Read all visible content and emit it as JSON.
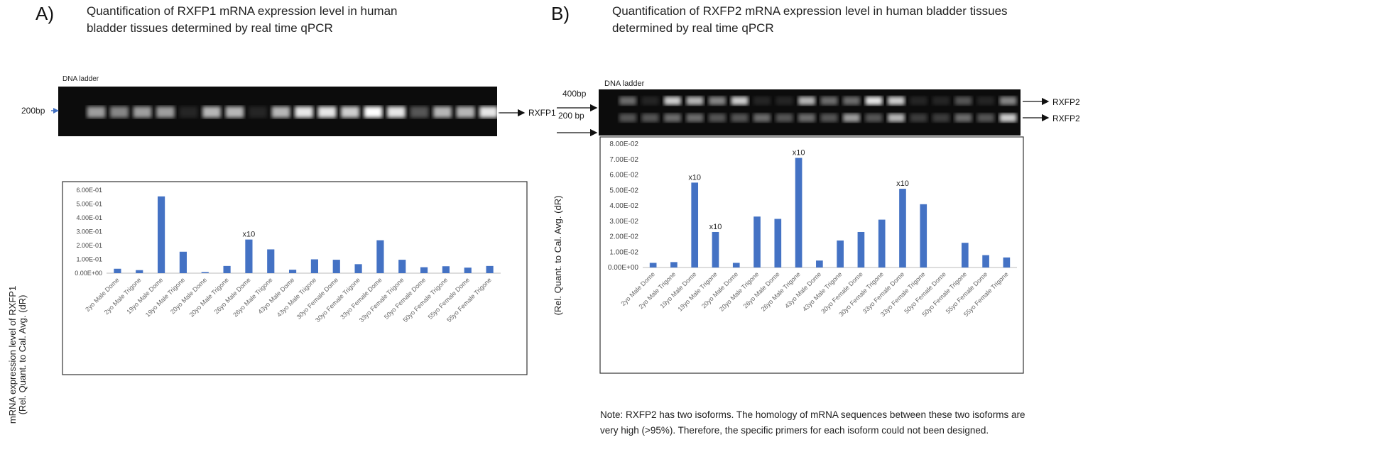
{
  "panels": [
    "A)",
    "B)"
  ],
  "gels": [
    {
      "ladder": "DNA ladder",
      "markers": [
        "200bp"
      ],
      "bands": [
        "RXFP1"
      ]
    },
    {
      "ladder": "DNA ladder",
      "markers": [
        "400bp",
        "200 bp"
      ],
      "bands": [
        "RXFP2",
        "RXFP2"
      ]
    }
  ],
  "note": "Note: RXFP2 has two isoforms. The homology of mRNA sequences between these two isoforms are very high (>95%). Therefore, the specific primers for each isoform could not been designed.",
  "chart_data": [
    {
      "type": "bar",
      "title": "Quantification of RXFP1 mRNA expression level  in human bladder tissues determined by real time qPCR",
      "ylabel": [
        "mRNA expression level of RXFP1",
        "(Rel. Quant. to Cal. Avg. (dR)"
      ],
      "categories": [
        "2yo Male Dome",
        "2yo Male Trigone",
        "19yo Male Dome",
        "19yo Male Trigone",
        "20yo Male Dome",
        "20yo Male Trigone",
        "26yo Male Dome",
        "26yo Male Trigone",
        "43yo Male Dome",
        "43yo Male Trigone",
        "30yo Female Dome",
        "30yo Female Trigone",
        "33yo Female Dome",
        "33yo Female Trigone",
        "50yo Female Dome",
        "50yo Female Trigone",
        "55yo Female Dome",
        "55yo Female Trigone"
      ],
      "values": [
        0.032,
        0.022,
        0.555,
        0.155,
        0.008,
        0.052,
        0.243,
        0.172,
        0.025,
        0.1,
        0.097,
        0.065,
        0.238,
        0.097,
        0.043,
        0.05,
        0.04,
        0.052
      ],
      "color": "#4472c4",
      "ylim": [
        0,
        0.6
      ],
      "yticks": [
        {
          "value": 0,
          "label": "0.00E+00"
        },
        {
          "value": 0.1,
          "label": "1.00E-01"
        },
        {
          "value": 0.2,
          "label": "2.00E-01"
        },
        {
          "value": 0.3,
          "label": "3.00E-01"
        },
        {
          "value": 0.4,
          "label": "4.00E-01"
        },
        {
          "value": 0.5,
          "label": "5.00E-01"
        },
        {
          "value": 0.6,
          "label": "6.00E-01"
        }
      ],
      "annotations": [
        {
          "text": "x10",
          "x": "26yo Male Dome"
        }
      ]
    },
    {
      "type": "bar",
      "title": "Quantification of RXFP2 mRNA expression level in human bladder tissues determined by real time qPCR",
      "ylabel": [
        "(Rel. Quant. to Cal. Avg. (dR)"
      ],
      "categories": [
        "2yo Male Dome",
        "2yo Male Trigone",
        "19yo Male Dome",
        "19yo Male Trigone",
        "20yo Male Dome",
        "20yo Male Trigone",
        "26yo Male Dome",
        "26yo Male Trigone",
        "43yo Male Dome",
        "43yo Male Trigone",
        "30yo Female Dome",
        "30yo Female Trigone",
        "33yo Female Dome",
        "33yo Female Trigone",
        "50yo Female Dome",
        "50yo Female Trigone",
        "55yo Female Dome",
        "55yo Female Trigone"
      ],
      "values": [
        0.003,
        0.0035,
        0.055,
        0.023,
        0.003,
        0.033,
        0.0315,
        0.071,
        0.0045,
        0.0175,
        0.023,
        0.031,
        0.051,
        0.041,
        0,
        0.016,
        0.008,
        0.0065
      ],
      "color": "#4472c4",
      "ylim": [
        0,
        0.08
      ],
      "yticks": [
        {
          "value": 0,
          "label": "0.00E+00"
        },
        {
          "value": 0.01,
          "label": "1.00E-02"
        },
        {
          "value": 0.02,
          "label": "2.00E-02"
        },
        {
          "value": 0.03,
          "label": "3.00E-02"
        },
        {
          "value": 0.04,
          "label": "4.00E-02"
        },
        {
          "value": 0.05,
          "label": "5.00E-02"
        },
        {
          "value": 0.06,
          "label": "6.00E-02"
        },
        {
          "value": 0.07,
          "label": "7.00E-02"
        },
        {
          "value": 0.08,
          "label": "8.00E-02"
        }
      ],
      "annotations": [
        {
          "text": "x10",
          "x": "19yo Male Dome"
        },
        {
          "text": "x10",
          "x": "19yo Male Trigone"
        },
        {
          "text": "x10",
          "x": "26yo Male Trigone"
        },
        {
          "text": "x10",
          "x": "33yo Female Dome"
        }
      ]
    }
  ]
}
